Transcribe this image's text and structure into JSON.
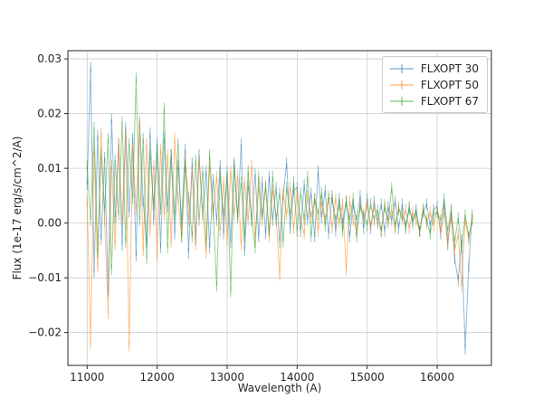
{
  "figure": {
    "background": "#ffffff"
  },
  "chart_data": {
    "type": "line",
    "subtype": "errorbar-spectrum",
    "title": "",
    "xlabel": "Wavelength (A)",
    "ylabel": "Flux (1e-17 erg/s/cm^2/A)",
    "xlim": [
      10725,
      16775
    ],
    "ylim": [
      -0.026,
      0.0315
    ],
    "grid": true,
    "grid_color": "#cccccc",
    "legend_position": "upper right",
    "x_ticks": {
      "values": [
        11000,
        12000,
        13000,
        14000,
        15000,
        16000
      ],
      "labels": [
        "11000",
        "12000",
        "13000",
        "14000",
        "15000",
        "16000"
      ]
    },
    "y_ticks": {
      "values": [
        -0.02,
        -0.01,
        0.0,
        0.01,
        0.02,
        0.03
      ],
      "labels": [
        "−0.02",
        "−0.01",
        "0.00",
        "0.01",
        "0.02",
        "0.03"
      ]
    },
    "x_start": 11000,
    "x_step": 50,
    "n_points": 111,
    "yerr": 0.001,
    "series": [
      {
        "name": "FLXOPT 30",
        "color": "#1f77b4",
        "opacity": 0.5,
        "values": [
          0.007,
          0.0285,
          -0.009,
          0.016,
          -0.003,
          0.012,
          -0.0125,
          0.019,
          0.001,
          0.0145,
          -0.004,
          0.0175,
          0.002,
          0.0155,
          -0.006,
          0.0185,
          0.004,
          -0.0035,
          0.0165,
          0.0005,
          0.0145,
          -0.0045,
          0.0155,
          0.003,
          0.0125,
          -0.002,
          0.0105,
          0.0005,
          0.0135,
          -0.0055,
          0.011,
          -0.003,
          0.0125,
          0.0015,
          0.0095,
          -0.0045,
          0.008,
          0.0005,
          0.0105,
          -0.002,
          0.0095,
          -0.0035,
          0.011,
          0.001,
          0.0145,
          -0.005,
          0.007,
          0.0005,
          0.009,
          -0.0025,
          0.0075,
          -0.002,
          0.0085,
          0.0005,
          0.0065,
          -0.0035,
          0.005,
          0.011,
          -0.001,
          0.006,
          0.0065,
          -0.0015,
          0.007,
          0.0005,
          0.0055,
          -0.0025,
          0.0095,
          0.001,
          0.006,
          -0.002,
          0.005,
          -0.0015,
          0.0045,
          0.0,
          0.004,
          -0.0025,
          0.0035,
          0.0005,
          0.005,
          -0.001,
          0.0045,
          -0.001,
          0.004,
          0.0,
          0.0035,
          -0.0015,
          0.003,
          0.0005,
          0.004,
          -0.001,
          0.0035,
          -0.001,
          0.003,
          0.0,
          0.0025,
          -0.0015,
          0.002,
          0.0035,
          -0.0005,
          0.0025,
          0.003,
          -0.002,
          0.0035,
          -0.004,
          0.002,
          -0.0065,
          -0.0105,
          -0.003,
          -0.023,
          -0.008,
          0.0015
        ]
      },
      {
        "name": "FLXOPT 50",
        "color": "#ff7f0e",
        "opacity": 0.5,
        "values": [
          0.004,
          -0.022,
          0.013,
          -0.008,
          0.0165,
          0.0005,
          -0.0165,
          0.0105,
          -0.004,
          0.0145,
          0.0005,
          0.016,
          -0.0225,
          0.0135,
          0.0025,
          0.018,
          -0.005,
          0.0145,
          -0.0015,
          0.0105,
          -0.006,
          0.0135,
          0.0015,
          0.0125,
          -0.0035,
          0.0155,
          0.0045,
          -0.0025,
          0.0115,
          0.0005,
          0.0095,
          -0.004,
          0.0115,
          0.0025,
          -0.0055,
          0.0105,
          0.0015,
          0.0085,
          -0.0015,
          0.0075,
          -0.003,
          0.0095,
          0.0015,
          0.0085,
          -0.004,
          0.0075,
          0.0005,
          0.0105,
          -0.0025,
          0.0065,
          0.0005,
          0.007,
          -0.0025,
          0.006,
          0.001,
          -0.0095,
          0.0055,
          0.0015,
          0.0065,
          -0.001,
          0.0055,
          0.0005,
          -0.002,
          0.005,
          0.001,
          0.0045,
          -0.0015,
          0.004,
          0.0005,
          0.005,
          -0.001,
          0.0045,
          0.0,
          0.0035,
          -0.0085,
          0.004,
          0.0005,
          -0.0015,
          0.0035,
          0.001,
          0.0035,
          -0.0005,
          0.003,
          0.0005,
          -0.0015,
          0.0035,
          0.0,
          0.0025,
          -0.001,
          0.003,
          0.0005,
          0.0025,
          -0.001,
          0.002,
          0.0005,
          -0.0015,
          0.0025,
          0.0,
          0.002,
          -0.0005,
          0.0025,
          -0.0015,
          0.002,
          -0.0035,
          0.001,
          -0.005,
          -0.002,
          -0.0115,
          0.0005,
          -0.003,
          0.001
        ]
      },
      {
        "name": "FLXOPT 67",
        "color": "#2ca02c",
        "opacity": 0.5,
        "values": [
          0.0105,
          0.0005,
          0.0175,
          -0.0055,
          0.0125,
          0.0025,
          0.0155,
          -0.0085,
          0.0115,
          0.0015,
          0.0185,
          -0.0035,
          0.0145,
          0.0045,
          0.0265,
          0.0005,
          0.0155,
          -0.0065,
          0.0125,
          0.0035,
          0.0135,
          0.0025,
          0.021,
          -0.0045,
          0.0125,
          0.0015,
          0.0145,
          -0.0025,
          0.0105,
          0.0045,
          -0.0025,
          0.0115,
          0.0005,
          0.0095,
          -0.0035,
          0.0125,
          0.0025,
          -0.0115,
          0.0085,
          0.0015,
          0.0085,
          -0.0125,
          0.0105,
          0.0015,
          0.0075,
          -0.0025,
          0.0095,
          0.0005,
          -0.0045,
          0.0085,
          0.0015,
          0.0065,
          -0.0015,
          0.0085,
          0.0005,
          0.0055,
          -0.0035,
          0.0065,
          0.0015,
          0.0075,
          -0.0015,
          0.0055,
          0.0005,
          0.0085,
          -0.0025,
          0.0045,
          0.0015,
          0.0055,
          -0.0005,
          0.0045,
          0.0045,
          0.0005,
          0.0035,
          -0.0015,
          0.004,
          0.0005,
          0.0045,
          -0.0025,
          0.003,
          0.0015,
          -0.0005,
          0.0035,
          0.0005,
          0.0025,
          -0.0015,
          0.003,
          0.0005,
          0.0065,
          -0.0005,
          0.0025,
          0.0015,
          -0.0005,
          0.0025,
          0.0005,
          0.002,
          -0.0015,
          0.0025,
          0.0005,
          -0.002,
          0.0015,
          0.002,
          0.0005,
          0.0045,
          -0.0015,
          0.0025,
          -0.0035,
          0.001,
          -0.0045,
          0.0015,
          -0.0025,
          0.0005
        ]
      }
    ]
  }
}
